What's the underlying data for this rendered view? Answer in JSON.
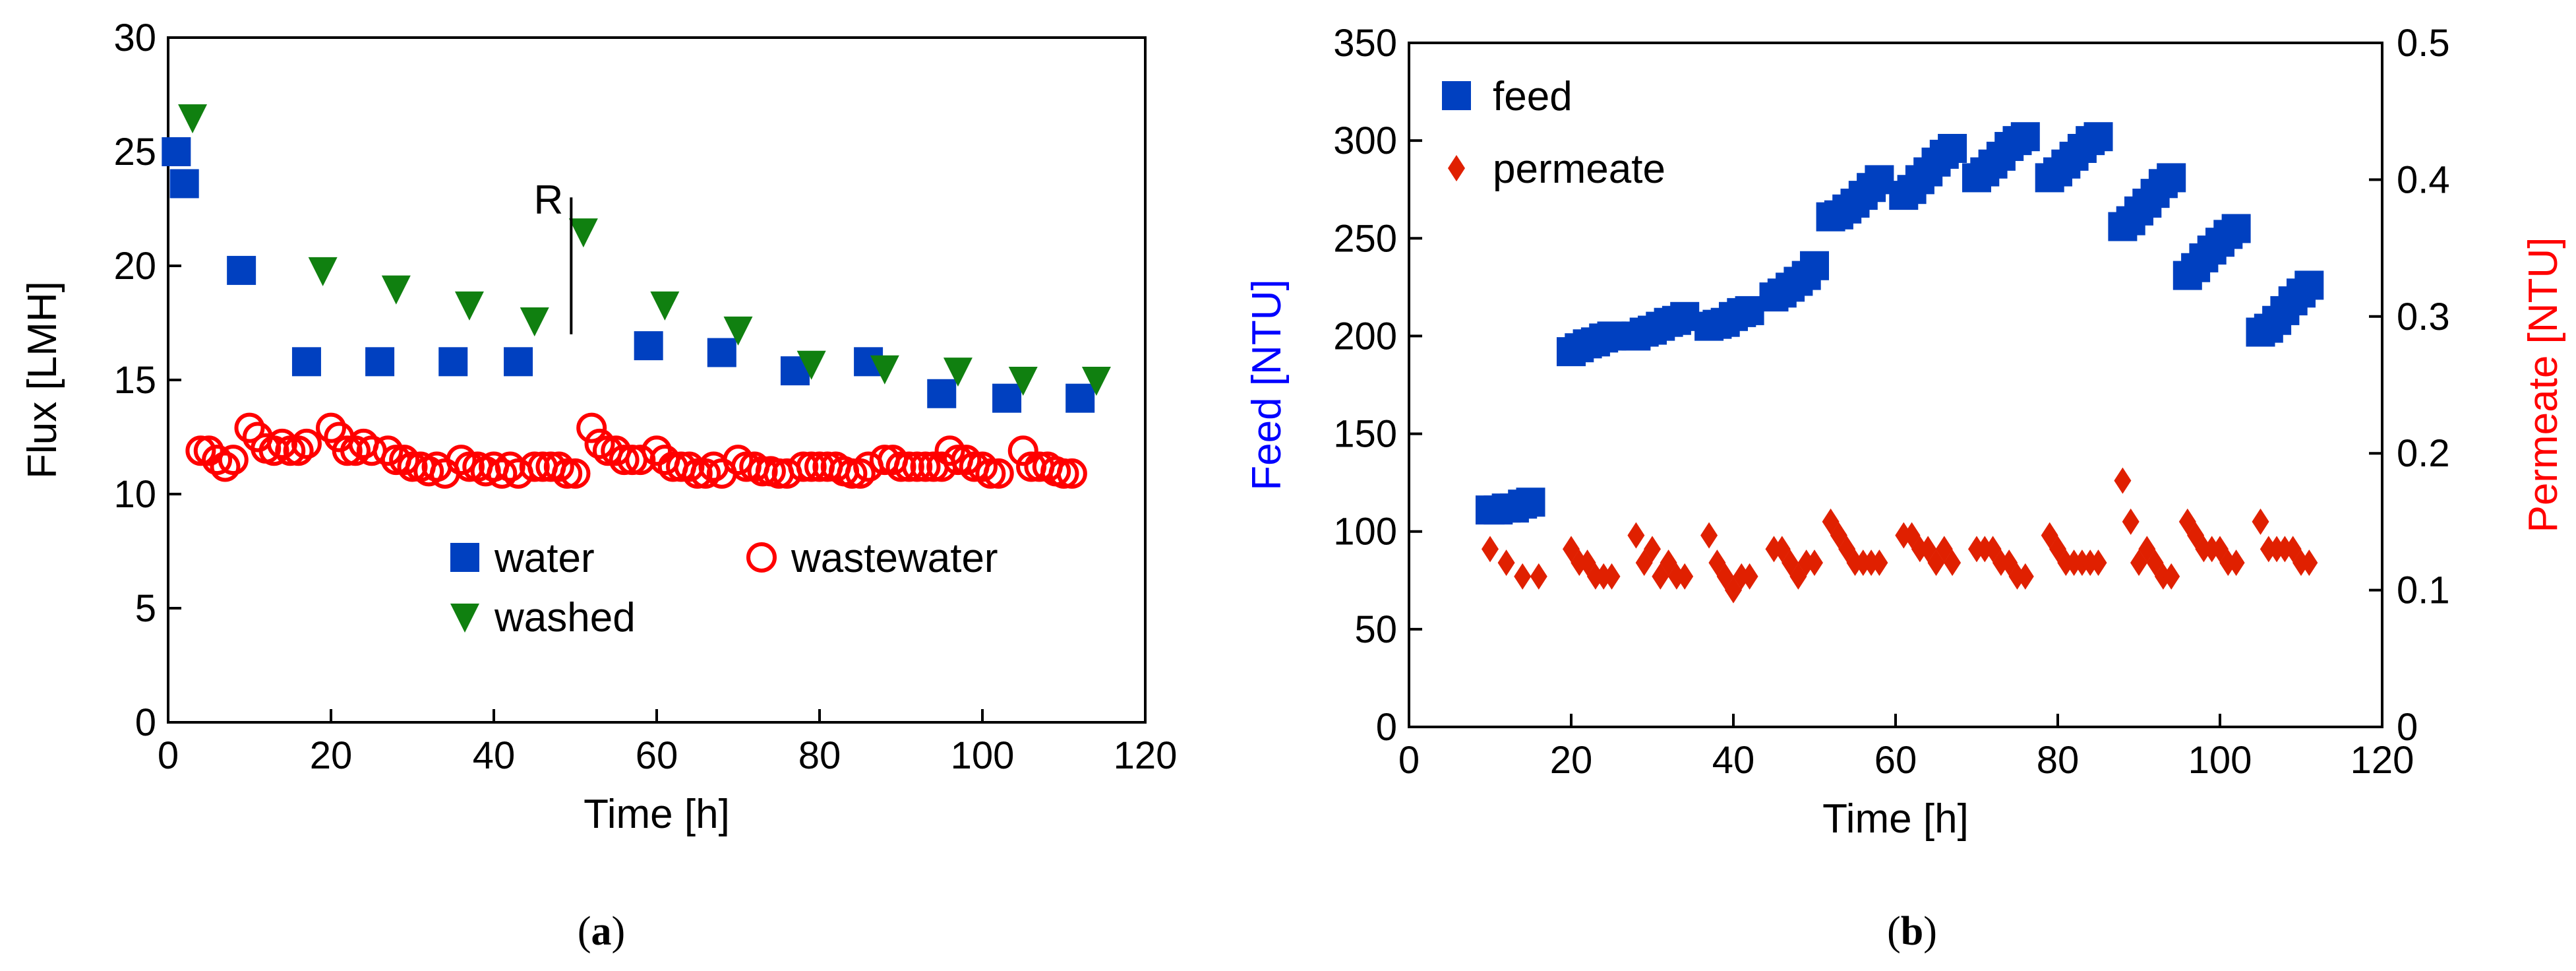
{
  "chart_data": [
    {
      "type": "scatter",
      "panel": "(a)",
      "caption_letter": "a",
      "xlabel": "Time [h]",
      "ylabel": "Flux [LMH]",
      "xlim": [
        0,
        120
      ],
      "ylim": [
        0,
        30
      ],
      "xticks": [
        "0",
        "20",
        "40",
        "60",
        "80",
        "100",
        "120"
      ],
      "yticks": [
        "0",
        "5",
        "10",
        "15",
        "20",
        "25",
        "30"
      ],
      "legend": "bottom-center",
      "annotation": {
        "text": "R",
        "x": 49.5,
        "y_range": [
          17,
          23
        ]
      },
      "series": [
        {
          "name": "water",
          "marker": "square",
          "color": "#0040c0",
          "x": [
            1,
            2,
            9,
            17,
            26,
            35,
            43,
            59,
            68,
            77,
            86,
            95,
            103,
            112
          ],
          "y": [
            25,
            23.6,
            19.8,
            15.8,
            15.8,
            15.8,
            15.8,
            16.5,
            16.2,
            15.4,
            15.8,
            14.4,
            14.2,
            14.2
          ]
        },
        {
          "name": "washed",
          "marker": "triangle-down",
          "color": "#108010",
          "x": [
            3,
            19,
            28,
            37,
            45,
            51,
            61,
            70,
            79,
            88,
            97,
            105,
            114
          ],
          "y": [
            26.5,
            19.8,
            19,
            18.3,
            17.6,
            21.5,
            18.3,
            17.2,
            15.7,
            15.5,
            15.4,
            15,
            15
          ]
        },
        {
          "name": "wastewater",
          "marker": "circle-open",
          "color": "#ff0000",
          "x": [
            4,
            5,
            6,
            7,
            8,
            10,
            11,
            12,
            13,
            14,
            15,
            16,
            17,
            20,
            21,
            22,
            23,
            24,
            25,
            27,
            28,
            29,
            30,
            31,
            32,
            33,
            34,
            36,
            37,
            38,
            39,
            40,
            41,
            42,
            43,
            45,
            46,
            47,
            48,
            49,
            50,
            52,
            53,
            54,
            55,
            56,
            57,
            58,
            60,
            61,
            62,
            63,
            64,
            65,
            66,
            67,
            68,
            70,
            71,
            72,
            73,
            74,
            75,
            76,
            78,
            79,
            80,
            81,
            82,
            83,
            84,
            85,
            86,
            88,
            89,
            90,
            91,
            92,
            93,
            94,
            95,
            96,
            97,
            98,
            99,
            100,
            101,
            102,
            105,
            106,
            107,
            108,
            109,
            110,
            111
          ],
          "y": [
            11.9,
            11.9,
            11.5,
            11.2,
            11.5,
            12.9,
            12.5,
            12,
            11.9,
            12.2,
            11.9,
            11.9,
            12.2,
            12.9,
            12.5,
            11.9,
            11.9,
            12.2,
            11.9,
            11.9,
            11.5,
            11.5,
            11.2,
            11.2,
            11,
            11.2,
            10.9,
            11.5,
            11.2,
            11.2,
            11,
            11.2,
            10.9,
            11.2,
            10.9,
            11.2,
            11.2,
            11.2,
            11.2,
            10.9,
            10.9,
            12.9,
            12.2,
            11.9,
            11.9,
            11.5,
            11.5,
            11.5,
            11.9,
            11.5,
            11.2,
            11.2,
            11.2,
            10.9,
            10.9,
            11.2,
            10.9,
            11.5,
            11.2,
            11.2,
            11,
            11,
            10.9,
            10.9,
            11.2,
            11.2,
            11.2,
            11.2,
            11.2,
            11,
            10.9,
            10.9,
            11.2,
            11.5,
            11.5,
            11.2,
            11.2,
            11.2,
            11.2,
            11.2,
            11.2,
            11.9,
            11.5,
            11.5,
            11.2,
            11.2,
            10.9,
            10.9,
            11.9,
            11.2,
            11.2,
            11.2,
            11,
            10.9,
            10.9
          ]
        }
      ]
    },
    {
      "type": "scatter",
      "panel": "(b)",
      "caption_letter": "b",
      "xlabel": "Time [h]",
      "ylabel": "Feed [NTU]",
      "y2label": "Permeate [NTU]",
      "xlim": [
        0,
        120
      ],
      "ylim": [
        0,
        350
      ],
      "y2lim": [
        0,
        0.5
      ],
      "xticks": [
        "0",
        "20",
        "40",
        "60",
        "80",
        "100",
        "120"
      ],
      "yticks": [
        "0",
        "50",
        "100",
        "150",
        "200",
        "250",
        "300",
        "350"
      ],
      "y2ticks": [
        "0",
        "0.1",
        "0.2",
        "0.3",
        "0.4",
        "0.5"
      ],
      "ylabel_color": "#0000ff",
      "y2label_color": "#ff0000",
      "legend": "top-left",
      "series": [
        {
          "name": "feed",
          "axis": "left",
          "marker": "square",
          "color": "#0040c0",
          "x": [
            10,
            11,
            12,
            13,
            14,
            15,
            20,
            21,
            22,
            23,
            24,
            25,
            28,
            29,
            30,
            31,
            32,
            33,
            34,
            37,
            38,
            39,
            40,
            41,
            42,
            45,
            46,
            47,
            48,
            49,
            50,
            52,
            53,
            54,
            55,
            56,
            57,
            58,
            61,
            62,
            63,
            64,
            65,
            66,
            67,
            70,
            71,
            72,
            73,
            74,
            75,
            76,
            79,
            80,
            81,
            82,
            83,
            84,
            85,
            88,
            89,
            90,
            91,
            92,
            93,
            94,
            96,
            97,
            98,
            99,
            100,
            101,
            102,
            105,
            106,
            107,
            108,
            109,
            110,
            111
          ],
          "y": [
            111,
            111,
            112,
            112,
            114,
            115,
            192,
            194,
            196,
            197,
            199,
            200,
            200,
            202,
            203,
            205,
            207,
            208,
            210,
            205,
            206,
            207,
            210,
            212,
            213,
            220,
            222,
            225,
            228,
            231,
            236,
            261,
            262,
            265,
            268,
            272,
            276,
            280,
            272,
            275,
            280,
            284,
            289,
            293,
            296,
            281,
            284,
            288,
            292,
            297,
            300,
            302,
            281,
            284,
            288,
            292,
            296,
            300,
            302,
            256,
            259,
            264,
            268,
            273,
            278,
            281,
            231,
            235,
            240,
            244,
            248,
            252,
            255,
            202,
            204,
            208,
            213,
            218,
            222,
            226
          ]
        },
        {
          "name": "permeate",
          "axis": "right",
          "marker": "diamond",
          "color": "#e02000",
          "x": [
            10,
            12,
            14,
            16,
            20,
            21,
            22,
            23,
            24,
            25,
            28,
            29,
            30,
            31,
            32,
            33,
            34,
            37,
            38,
            39,
            40,
            41,
            42,
            45,
            46,
            47,
            48,
            49,
            50,
            52,
            53,
            54,
            55,
            56,
            57,
            58,
            61,
            62,
            63,
            64,
            65,
            66,
            67,
            70,
            71,
            72,
            73,
            74,
            75,
            76,
            79,
            80,
            81,
            82,
            83,
            84,
            85,
            88,
            89,
            90,
            91,
            92,
            93,
            94,
            96,
            97,
            98,
            99,
            100,
            101,
            102,
            105,
            106,
            107,
            108,
            109,
            110,
            111
          ],
          "y": [
            0.13,
            0.12,
            0.11,
            0.11,
            0.13,
            0.12,
            0.12,
            0.11,
            0.11,
            0.11,
            0.14,
            0.12,
            0.13,
            0.11,
            0.12,
            0.11,
            0.11,
            0.14,
            0.12,
            0.11,
            0.1,
            0.11,
            0.11,
            0.13,
            0.13,
            0.12,
            0.11,
            0.12,
            0.12,
            0.15,
            0.14,
            0.13,
            0.12,
            0.12,
            0.12,
            0.12,
            0.14,
            0.14,
            0.13,
            0.13,
            0.12,
            0.13,
            0.12,
            0.13,
            0.13,
            0.13,
            0.12,
            0.12,
            0.11,
            0.11,
            0.14,
            0.13,
            0.12,
            0.12,
            0.12,
            0.12,
            0.12,
            0.18,
            0.15,
            0.12,
            0.13,
            0.12,
            0.11,
            0.11,
            0.15,
            0.14,
            0.13,
            0.13,
            0.13,
            0.12,
            0.12,
            0.15,
            0.13,
            0.13,
            0.13,
            0.13,
            0.12,
            0.12
          ]
        }
      ]
    }
  ]
}
